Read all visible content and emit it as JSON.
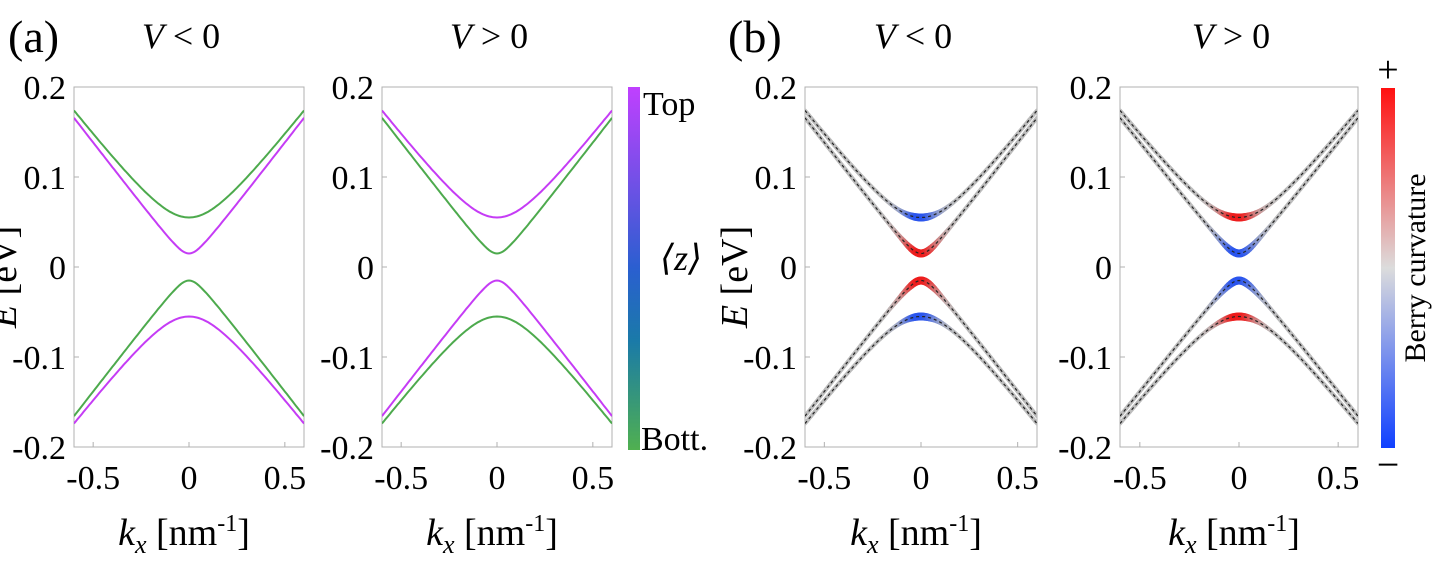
{
  "panel_labels": [
    "(a)",
    "(b)"
  ],
  "colorbar_a": {
    "top_label": "Top",
    "bottom_label": "Bott.",
    "title": "⟨z⟩",
    "top_color": "#c040ff",
    "bottom_color": "#50b050"
  },
  "colorbar_b": {
    "plus_label": "+",
    "minus_label": "−",
    "title": "Berry curvature",
    "top_color": "#ff1010",
    "mid_color": "#d8d8d8",
    "bottom_color": "#1040ff"
  },
  "colors": {
    "top": "#c53cf5",
    "bottom": "#4daa4d",
    "red": "#ee1c1c",
    "blue": "#2a55ee",
    "gray": "#bdbdbd",
    "axis": "#b0b0b0"
  },
  "chart_data": [
    {
      "type": "line",
      "id": "a-left",
      "title_var": "V",
      "title_rel": "< 0",
      "ylabel_var": "E",
      "ylabel_unit": "[eV]",
      "xlabel_var": "k",
      "xlabel_sub": "x",
      "xlabel_unit": "[nm",
      "xlabel_exp": "-1",
      "xlabel_close": "]",
      "xlim": [
        -0.6,
        0.6
      ],
      "ylim": [
        -0.2,
        0.2
      ],
      "xticks": [
        -0.5,
        0,
        0.5
      ],
      "xtick_labels": [
        "-0.5",
        "0",
        "0.5"
      ],
      "yticks": [
        0.2,
        0.1,
        0,
        -0.1,
        -0.2
      ],
      "ytick_labels": [
        "0.2",
        "0.1",
        "0",
        "-0.1",
        "-0.2"
      ],
      "slope": 0.275,
      "series": [
        {
          "name": "upper outer",
          "gap": 0.055,
          "sign": 1,
          "layer": "bottom"
        },
        {
          "name": "upper inner",
          "gap": 0.015,
          "sign": 1,
          "layer": "top"
        },
        {
          "name": "lower inner",
          "gap": 0.015,
          "sign": -1,
          "layer": "bottom"
        },
        {
          "name": "lower outer",
          "gap": 0.055,
          "sign": -1,
          "layer": "top"
        }
      ]
    },
    {
      "type": "line",
      "id": "a-right",
      "title_var": "V",
      "title_rel": "> 0",
      "xlabel_var": "k",
      "xlabel_sub": "x",
      "xlabel_unit": "[nm",
      "xlabel_exp": "-1",
      "xlabel_close": "]",
      "xlim": [
        -0.6,
        0.6
      ],
      "ylim": [
        -0.2,
        0.2
      ],
      "xticks": [
        -0.5,
        0,
        0.5
      ],
      "xtick_labels": [
        "-0.5",
        "0",
        "0.5"
      ],
      "yticks": [
        0.2,
        0.1,
        0,
        -0.1,
        -0.2
      ],
      "ytick_labels": [
        "0.2",
        "0.1",
        "0",
        "-0.1",
        "-0.2"
      ],
      "slope": 0.275,
      "series": [
        {
          "name": "upper outer",
          "gap": 0.055,
          "sign": 1,
          "layer": "top"
        },
        {
          "name": "upper inner",
          "gap": 0.015,
          "sign": 1,
          "layer": "bottom"
        },
        {
          "name": "lower inner",
          "gap": 0.015,
          "sign": -1,
          "layer": "top"
        },
        {
          "name": "lower outer",
          "gap": 0.055,
          "sign": -1,
          "layer": "bottom"
        }
      ]
    },
    {
      "type": "line",
      "id": "b-left",
      "title_var": "V",
      "title_rel": "< 0",
      "ylabel_var": "E",
      "ylabel_unit": "[eV]",
      "xlabel_var": "k",
      "xlabel_sub": "x",
      "xlabel_unit": "[nm",
      "xlabel_exp": "-1",
      "xlabel_close": "]",
      "xlim": [
        -0.6,
        0.6
      ],
      "ylim": [
        -0.2,
        0.2
      ],
      "xticks": [
        -0.5,
        0,
        0.5
      ],
      "xtick_labels": [
        "-0.5",
        "0",
        "0.5"
      ],
      "yticks": [
        0.2,
        0.1,
        0,
        -0.1,
        -0.2
      ],
      "ytick_labels": [
        "0.2",
        "0.1",
        "0",
        "-0.1",
        "-0.2"
      ],
      "slope": 0.275,
      "series": [
        {
          "name": "upper outer",
          "gap": 0.055,
          "sign": 1,
          "berry": "blue"
        },
        {
          "name": "upper inner",
          "gap": 0.015,
          "sign": 1,
          "berry": "red"
        },
        {
          "name": "lower inner",
          "gap": 0.015,
          "sign": -1,
          "berry": "red"
        },
        {
          "name": "lower outer",
          "gap": 0.055,
          "sign": -1,
          "berry": "blue"
        }
      ]
    },
    {
      "type": "line",
      "id": "b-right",
      "title_var": "V",
      "title_rel": "> 0",
      "xlabel_var": "k",
      "xlabel_sub": "x",
      "xlabel_unit": "[nm",
      "xlabel_exp": "-1",
      "xlabel_close": "]",
      "xlim": [
        -0.6,
        0.6
      ],
      "ylim": [
        -0.2,
        0.2
      ],
      "xticks": [
        -0.5,
        0,
        0.5
      ],
      "xtick_labels": [
        "-0.5",
        "0",
        "0.5"
      ],
      "yticks": [
        0.2,
        0.1,
        0,
        -0.1,
        -0.2
      ],
      "ytick_labels": [
        "0.2",
        "0.1",
        "0",
        "-0.1",
        "-0.2"
      ],
      "slope": 0.275,
      "series": [
        {
          "name": "upper outer",
          "gap": 0.055,
          "sign": 1,
          "berry": "red"
        },
        {
          "name": "upper inner",
          "gap": 0.015,
          "sign": 1,
          "berry": "blue"
        },
        {
          "name": "lower inner",
          "gap": 0.015,
          "sign": -1,
          "berry": "blue"
        },
        {
          "name": "lower outer",
          "gap": 0.055,
          "sign": -1,
          "berry": "red"
        }
      ]
    }
  ]
}
